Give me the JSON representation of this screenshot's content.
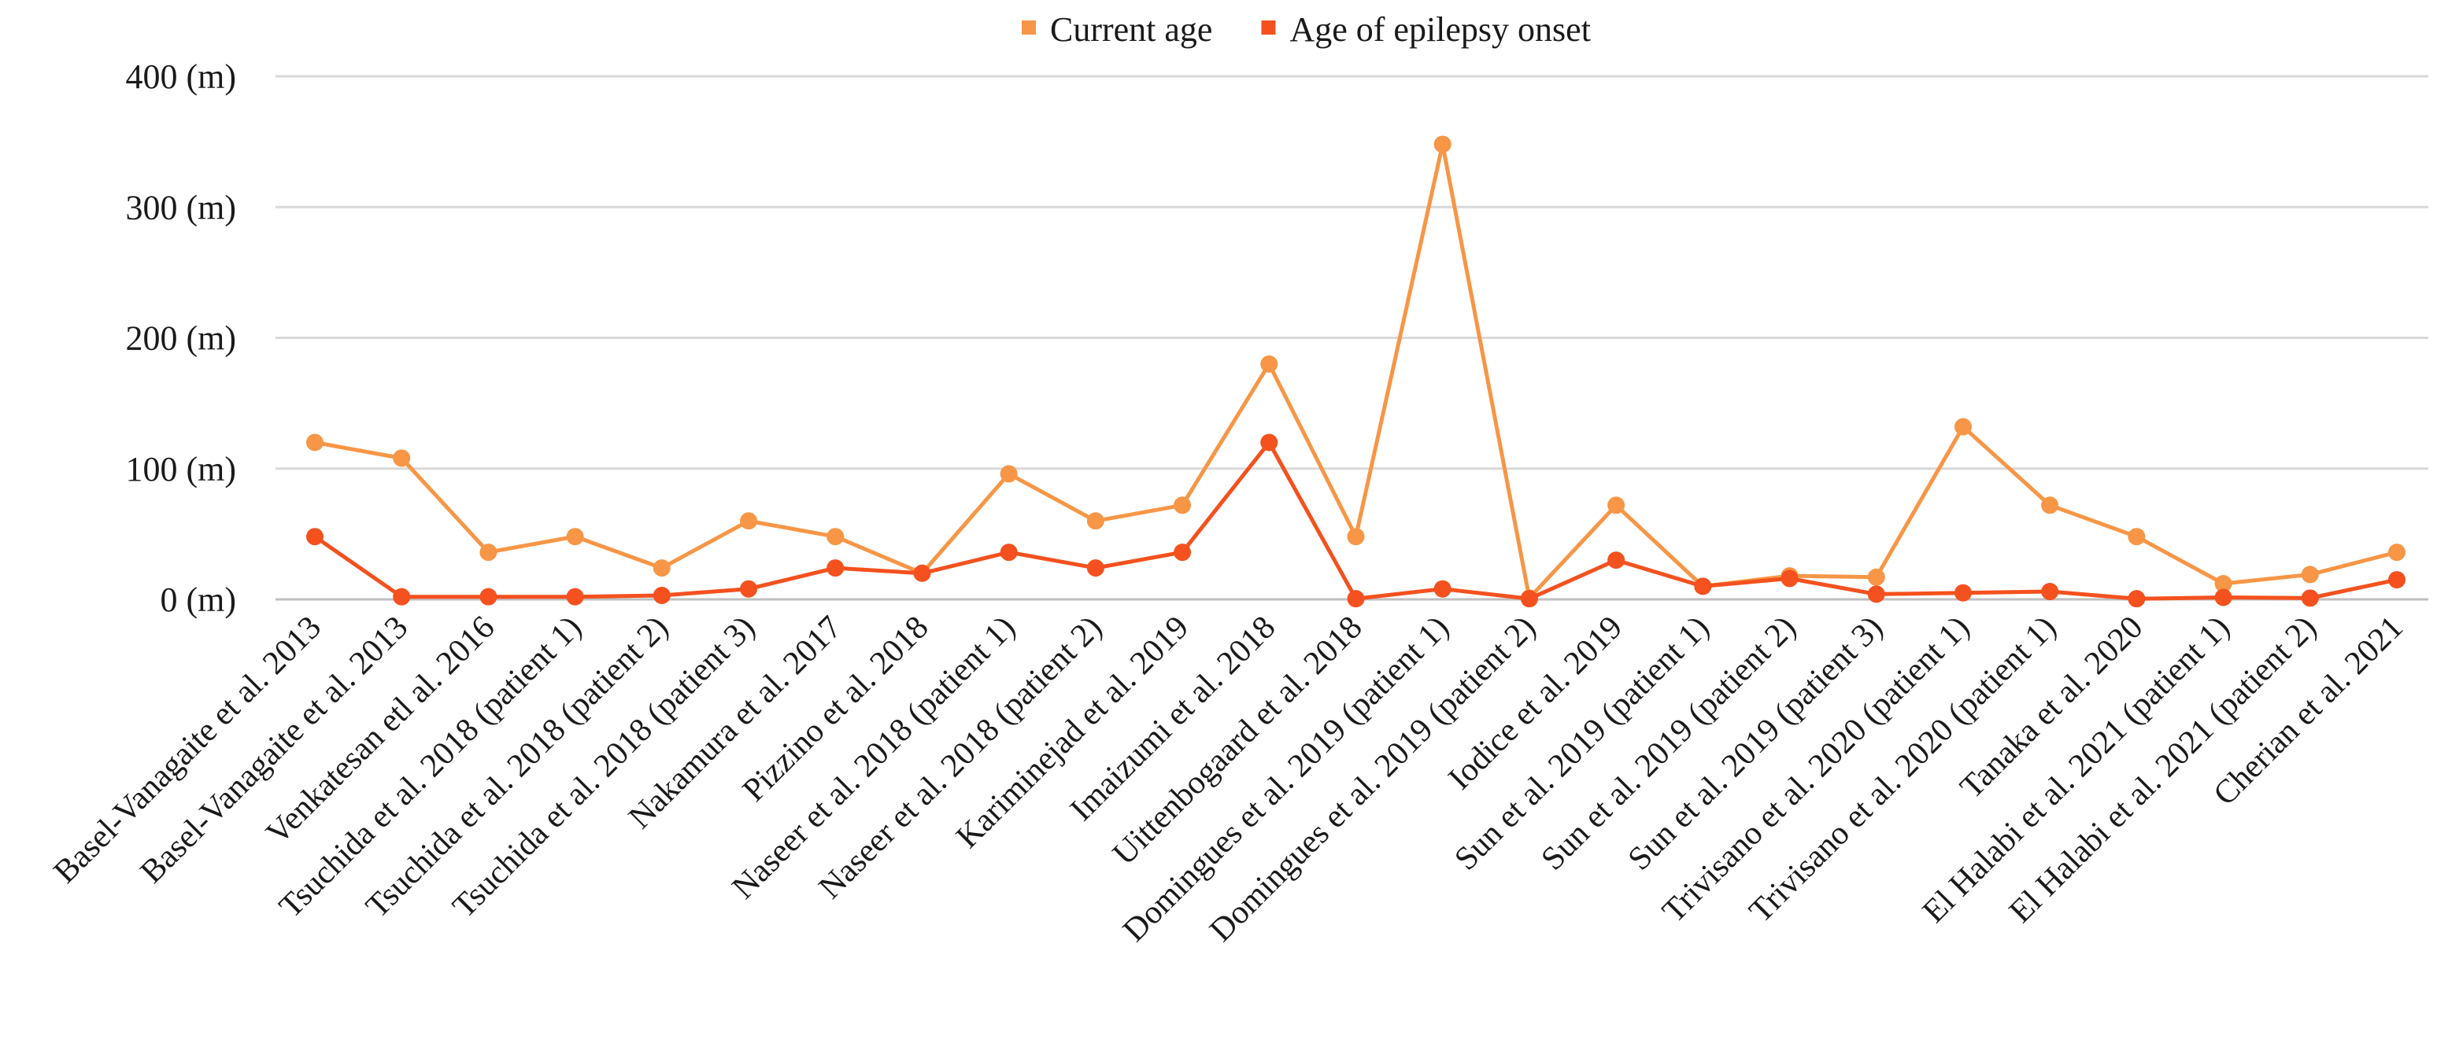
{
  "chart_data": {
    "type": "line",
    "title": "",
    "xlabel": "",
    "ylabel": "",
    "ylim": [
      0,
      400
    ],
    "yticks": [
      0,
      100,
      200,
      300,
      400
    ],
    "ytick_suffix": " (m)",
    "grid": true,
    "legend_position": "top-center",
    "categories": [
      "Basel-Vanagaite et al. 2013",
      "Basel-Vanagaite et al. 2013",
      "Venkatesan etl al. 2016",
      "Tsuchida et al. 2018 (patient 1)",
      "Tsuchida et al. 2018 (patient 2)",
      "Tsuchida et al. 2018 (patient 3)",
      "Nakamura et al. 2017",
      "Pizzino et al. 2018",
      "Naseer et al. 2018 (patient 1)",
      "Naseer et al. 2018 (patient 2)",
      "Kariminejad et al. 2019",
      "Imaizumi et al. 2018",
      "Uittenbogaard et al. 2018",
      "Domingues et al. 2019 (patient 1)",
      "Domingues et al. 2019 (patient 2)",
      "Iodice et al. 2019",
      "Sun et al. 2019 (patient 1)",
      "Sun et al. 2019 (patient 2)",
      "Sun et al. 2019 (patient 3)",
      "Trivisano et al. 2020 (patient 1)",
      "Trivisano et al. 2020 (patient 1)",
      "Tanaka et al. 2020",
      "El Halabi et al. 2021 (patient 1)",
      "El Halabi et al. 2021 (patient 2)",
      "Cherian et al. 2021"
    ],
    "series": [
      {
        "name": "Current age",
        "color": "#f79646",
        "values": [
          120,
          108,
          36,
          48,
          24,
          60,
          48,
          20,
          96,
          60,
          72,
          180,
          48,
          348,
          1,
          72,
          10,
          18,
          17,
          132,
          72,
          48,
          12,
          19,
          36
        ]
      },
      {
        "name": "Age of epilepsy onset",
        "color": "#f4511e",
        "values": [
          48,
          2,
          2,
          2,
          3,
          8,
          24,
          20,
          36,
          24,
          36,
          120,
          0.5,
          8,
          0.5,
          30,
          10,
          16,
          4,
          5,
          6,
          0.5,
          1.5,
          1,
          15
        ]
      }
    ]
  }
}
